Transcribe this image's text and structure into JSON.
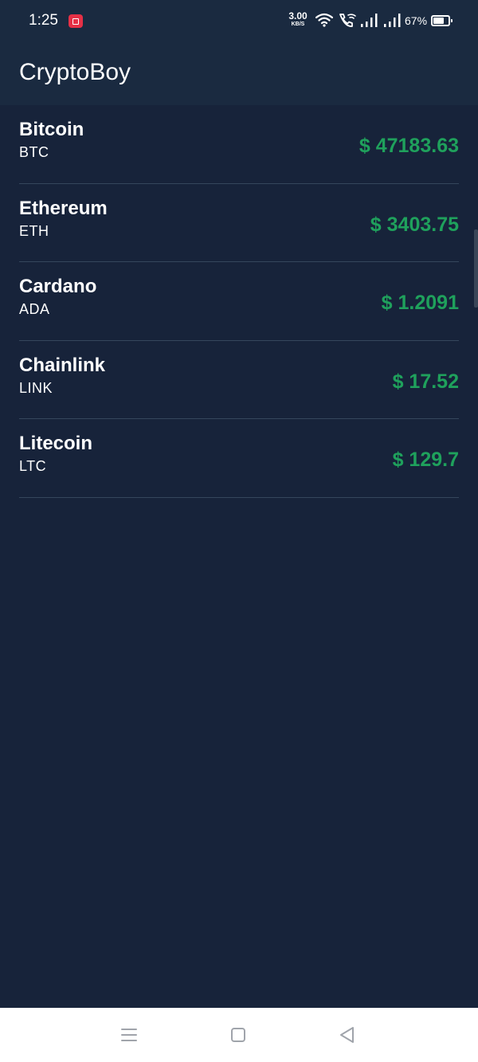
{
  "status_bar": {
    "time": "1:25",
    "net_speed_value": "3.00",
    "net_speed_unit": "KB/S",
    "battery_pct": "67%",
    "icons": [
      "screen-record-icon",
      "wifi-icon",
      "wifi-call-icon",
      "signal-icon",
      "signal-icon",
      "battery-icon"
    ]
  },
  "app_bar": {
    "title": "CryptoBoy"
  },
  "coins": [
    {
      "name": "Bitcoin",
      "symbol": "BTC",
      "price": "$ 47183.63"
    },
    {
      "name": "Ethereum",
      "symbol": "ETH",
      "price": "$ 3403.75"
    },
    {
      "name": "Cardano",
      "symbol": "ADA",
      "price": "$ 1.2091"
    },
    {
      "name": "Chainlink",
      "symbol": "LINK",
      "price": "$ 17.52"
    },
    {
      "name": "Litecoin",
      "symbol": "LTC",
      "price": "$ 129.7"
    }
  ],
  "nav_bar": {
    "icons": [
      "menu-icon",
      "home-icon",
      "back-icon"
    ]
  },
  "colors": {
    "background": "#17233a",
    "app_bar": "#1a2a40",
    "price": "#1fa15c",
    "divider": "#35465c",
    "record_badge": "#e53046"
  }
}
